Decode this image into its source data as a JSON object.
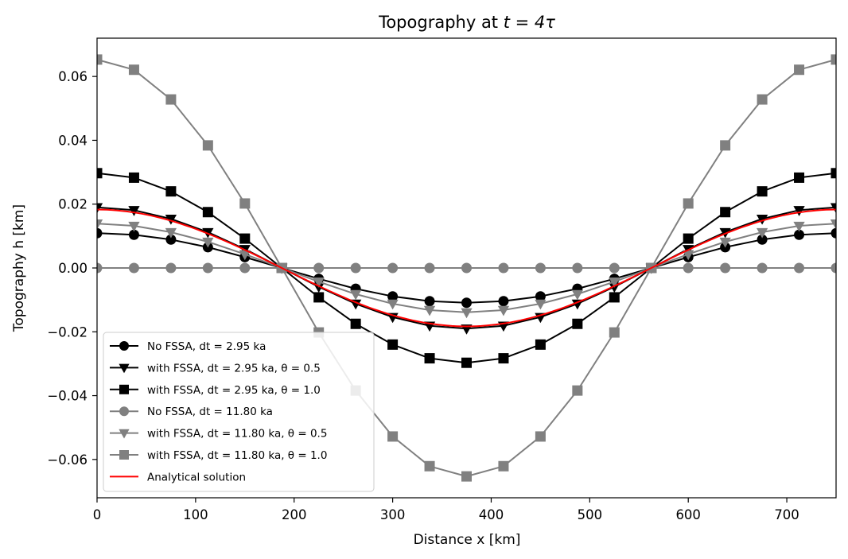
{
  "chart_data": {
    "type": "line",
    "title_prefix": "Topography at ",
    "title_math": "t = 4τ",
    "xlabel": "Distance x [km]",
    "ylabel": "Topography h [km]",
    "xlim": [
      0,
      750
    ],
    "ylim": [
      -0.072,
      0.072
    ],
    "xticks": [
      0,
      100,
      200,
      300,
      400,
      500,
      600,
      700
    ],
    "xtick_labels": [
      "0",
      "100",
      "200",
      "300",
      "400",
      "500",
      "600",
      "700"
    ],
    "yticks": [
      -0.06,
      -0.04,
      -0.02,
      0.0,
      0.02,
      0.04,
      0.06
    ],
    "ytick_labels": [
      "−0.06",
      "−0.04",
      "−0.02",
      "0.00",
      "0.02",
      "0.04",
      "0.06"
    ],
    "grid": false,
    "legend_position": "lower-left",
    "x": [
      0,
      37.5,
      75,
      112.5,
      150,
      187.5,
      225,
      262.5,
      300,
      337.5,
      375,
      412.5,
      450,
      487.5,
      525,
      562.5,
      600,
      637.5,
      675,
      712.5,
      750
    ],
    "series": [
      {
        "name": "No FSSA, dt = 2.95 ka",
        "color": "#000000",
        "marker": "circle",
        "values": [
          0.0109,
          0.0104,
          0.0089,
          0.0065,
          0.0034,
          0.0,
          -0.0034,
          -0.0065,
          -0.0089,
          -0.0104,
          -0.0109,
          -0.0104,
          -0.0089,
          -0.0065,
          -0.0034,
          0.0,
          0.0034,
          0.0065,
          0.0089,
          0.0104,
          0.0109
        ]
      },
      {
        "name": "with FSSA, dt = 2.95 ka, θ = 0.5",
        "color": "#000000",
        "marker": "triangle-down",
        "values": [
          0.019,
          0.0181,
          0.0154,
          0.0112,
          0.0059,
          0.0,
          -0.0059,
          -0.0112,
          -0.0154,
          -0.0181,
          -0.019,
          -0.0181,
          -0.0154,
          -0.0112,
          -0.0059,
          0.0,
          0.0059,
          0.0112,
          0.0154,
          0.0181,
          0.019
        ]
      },
      {
        "name": "with FSSA, dt = 2.95 ka, θ = 1.0",
        "color": "#000000",
        "marker": "square",
        "values": [
          0.0297,
          0.0283,
          0.024,
          0.0175,
          0.0092,
          0.0,
          -0.0092,
          -0.0175,
          -0.024,
          -0.0283,
          -0.0297,
          -0.0283,
          -0.024,
          -0.0175,
          -0.0092,
          0.0,
          0.0092,
          0.0175,
          0.024,
          0.0283,
          0.0297
        ]
      },
      {
        "name": "No FSSA, dt = 11.80 ka",
        "color": "#808080",
        "marker": "circle",
        "values": [
          0,
          0,
          0,
          0,
          0,
          0,
          0,
          0,
          0,
          0,
          0,
          0,
          0,
          0,
          0,
          0,
          0,
          0,
          0,
          0,
          0
        ]
      },
      {
        "name": "with FSSA, dt = 11.80 ka, θ = 0.5",
        "color": "#808080",
        "marker": "triangle-down",
        "values": [
          0.0139,
          0.0132,
          0.0112,
          0.0082,
          0.0043,
          0.0,
          -0.0043,
          -0.0082,
          -0.0112,
          -0.0132,
          -0.0139,
          -0.0132,
          -0.0112,
          -0.0082,
          -0.0043,
          0.0,
          0.0043,
          0.0082,
          0.0112,
          0.0132,
          0.0139
        ]
      },
      {
        "name": "with FSSA, dt = 11.80 ka, θ = 1.0",
        "color": "#808080",
        "marker": "square",
        "values": [
          0.0653,
          0.0621,
          0.0528,
          0.0384,
          0.0202,
          0.0,
          -0.0202,
          -0.0384,
          -0.0528,
          -0.0621,
          -0.0653,
          -0.0621,
          -0.0528,
          -0.0384,
          -0.0202,
          0.0,
          0.0202,
          0.0384,
          0.0528,
          0.0621,
          0.0653
        ]
      },
      {
        "name": "Analytical solution",
        "color": "#ff0000",
        "marker": "none",
        "amplitude": 0.0183
      }
    ]
  }
}
